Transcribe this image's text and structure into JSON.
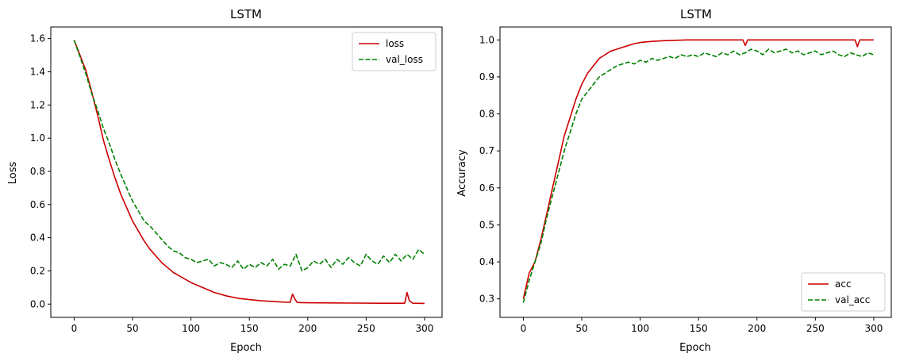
{
  "chart_data": [
    {
      "type": "line",
      "title": "LSTM",
      "xlabel": "Epoch",
      "ylabel": "Loss",
      "xlim": [
        -20,
        315
      ],
      "ylim": [
        -0.08,
        1.67
      ],
      "xticks": [
        0,
        50,
        100,
        150,
        200,
        250,
        300
      ],
      "yticks": [
        0.0,
        0.2,
        0.4,
        0.6,
        0.8,
        1.0,
        1.2,
        1.4,
        1.6
      ],
      "ytick_decimals": 1,
      "legend_position": "top-right",
      "series": [
        {
          "name": "loss",
          "color": "#cc0000",
          "dash": "solid",
          "x": [
            0,
            5,
            10,
            15,
            20,
            25,
            30,
            35,
            40,
            45,
            50,
            55,
            60,
            65,
            70,
            75,
            80,
            85,
            90,
            95,
            100,
            110,
            120,
            130,
            140,
            150,
            160,
            170,
            180,
            185,
            187,
            189,
            191,
            195,
            200,
            220,
            240,
            260,
            280,
            283,
            285,
            287,
            290,
            300
          ],
          "y": [
            1.59,
            1.5,
            1.41,
            1.28,
            1.14,
            0.99,
            0.87,
            0.76,
            0.66,
            0.58,
            0.5,
            0.44,
            0.38,
            0.33,
            0.29,
            0.25,
            0.22,
            0.19,
            0.17,
            0.15,
            0.13,
            0.1,
            0.07,
            0.05,
            0.035,
            0.027,
            0.02,
            0.016,
            0.012,
            0.011,
            0.06,
            0.03,
            0.01,
            0.009,
            0.008,
            0.007,
            0.006,
            0.005,
            0.005,
            0.005,
            0.07,
            0.02,
            0.005,
            0.004
          ]
        },
        {
          "name": "val_loss",
          "color": "#008000",
          "dash": "dashed",
          "x": [
            0,
            5,
            10,
            15,
            20,
            25,
            30,
            35,
            40,
            45,
            50,
            55,
            60,
            65,
            70,
            75,
            80,
            85,
            90,
            95,
            100,
            105,
            110,
            115,
            120,
            125,
            130,
            135,
            140,
            145,
            150,
            155,
            160,
            165,
            170,
            175,
            180,
            185,
            190,
            195,
            200,
            205,
            210,
            215,
            220,
            225,
            230,
            235,
            240,
            245,
            250,
            255,
            260,
            265,
            270,
            275,
            280,
            285,
            290,
            295,
            300
          ],
          "y": [
            1.59,
            1.49,
            1.39,
            1.27,
            1.17,
            1.06,
            0.97,
            0.87,
            0.78,
            0.7,
            0.62,
            0.56,
            0.5,
            0.47,
            0.43,
            0.39,
            0.35,
            0.32,
            0.31,
            0.28,
            0.27,
            0.25,
            0.26,
            0.27,
            0.23,
            0.25,
            0.24,
            0.22,
            0.26,
            0.21,
            0.24,
            0.22,
            0.25,
            0.23,
            0.27,
            0.21,
            0.24,
            0.23,
            0.3,
            0.2,
            0.22,
            0.26,
            0.24,
            0.27,
            0.22,
            0.27,
            0.24,
            0.28,
            0.25,
            0.23,
            0.3,
            0.26,
            0.24,
            0.29,
            0.25,
            0.3,
            0.26,
            0.3,
            0.27,
            0.33,
            0.3
          ]
        }
      ]
    },
    {
      "type": "line",
      "title": "LSTM",
      "xlabel": "Epoch",
      "ylabel": "Accuracy",
      "xlim": [
        -20,
        315
      ],
      "ylim": [
        0.25,
        1.035
      ],
      "xticks": [
        0,
        50,
        100,
        150,
        200,
        250,
        300
      ],
      "yticks": [
        0.3,
        0.4,
        0.5,
        0.6,
        0.7,
        0.8,
        0.9,
        1.0
      ],
      "ytick_decimals": 1,
      "legend_position": "bottom-right",
      "series": [
        {
          "name": "acc",
          "color": "#cc0000",
          "dash": "solid",
          "x": [
            0,
            5,
            10,
            15,
            20,
            25,
            30,
            35,
            40,
            45,
            50,
            55,
            60,
            65,
            70,
            75,
            80,
            85,
            90,
            95,
            100,
            110,
            120,
            130,
            140,
            150,
            160,
            170,
            180,
            188,
            190,
            192,
            200,
            220,
            240,
            260,
            280,
            284,
            286,
            288,
            300
          ],
          "y": [
            0.3,
            0.37,
            0.4,
            0.46,
            0.53,
            0.6,
            0.67,
            0.74,
            0.79,
            0.84,
            0.88,
            0.91,
            0.93,
            0.95,
            0.96,
            0.97,
            0.975,
            0.98,
            0.985,
            0.99,
            0.993,
            0.996,
            0.998,
            0.999,
            1.0,
            1.0,
            1.0,
            1.0,
            1.0,
            1.0,
            0.985,
            1.0,
            1.0,
            1.0,
            1.0,
            1.0,
            1.0,
            1.0,
            0.982,
            1.0,
            1.0
          ]
        },
        {
          "name": "val_acc",
          "color": "#008000",
          "dash": "dashed",
          "x": [
            0,
            5,
            10,
            15,
            20,
            25,
            30,
            35,
            40,
            45,
            50,
            55,
            60,
            65,
            70,
            75,
            80,
            85,
            90,
            95,
            100,
            105,
            110,
            115,
            120,
            125,
            130,
            135,
            140,
            145,
            150,
            155,
            160,
            165,
            170,
            175,
            180,
            185,
            190,
            195,
            200,
            205,
            210,
            215,
            220,
            225,
            230,
            235,
            240,
            245,
            250,
            255,
            260,
            265,
            270,
            275,
            280,
            285,
            290,
            295,
            300
          ],
          "y": [
            0.29,
            0.35,
            0.4,
            0.45,
            0.52,
            0.58,
            0.64,
            0.7,
            0.75,
            0.8,
            0.84,
            0.86,
            0.88,
            0.9,
            0.91,
            0.92,
            0.93,
            0.935,
            0.94,
            0.935,
            0.945,
            0.94,
            0.95,
            0.945,
            0.95,
            0.955,
            0.95,
            0.96,
            0.955,
            0.96,
            0.955,
            0.965,
            0.96,
            0.955,
            0.965,
            0.96,
            0.97,
            0.96,
            0.965,
            0.975,
            0.97,
            0.96,
            0.975,
            0.965,
            0.97,
            0.975,
            0.965,
            0.97,
            0.96,
            0.965,
            0.97,
            0.96,
            0.965,
            0.97,
            0.96,
            0.955,
            0.965,
            0.96,
            0.955,
            0.965,
            0.96
          ]
        }
      ]
    }
  ]
}
